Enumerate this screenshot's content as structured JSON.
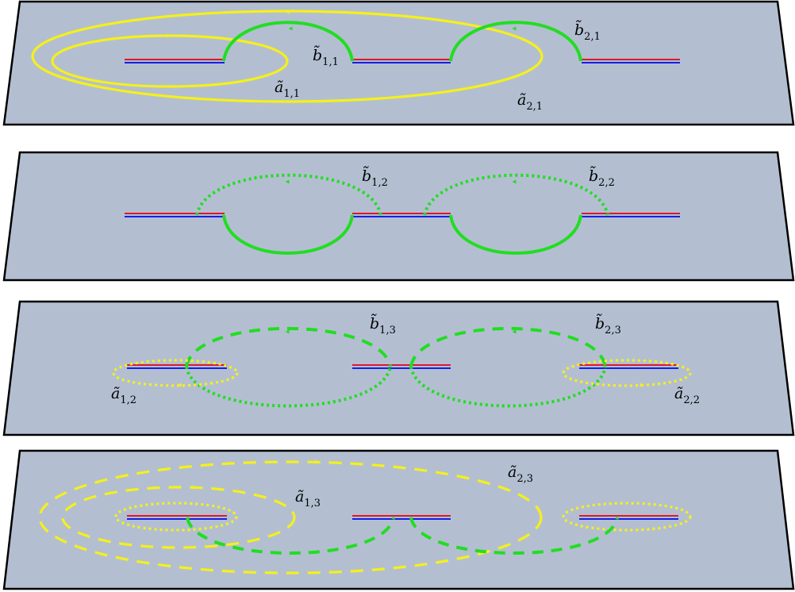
{
  "labels": {
    "b11": {
      "base": "b̃",
      "sub": "1,1"
    },
    "b21": {
      "base": "b̃",
      "sub": "2,1"
    },
    "a11": {
      "base": "ã",
      "sub": "1,1"
    },
    "a21": {
      "base": "ã",
      "sub": "2,1"
    },
    "b12": {
      "base": "b̃",
      "sub": "1,2"
    },
    "b22": {
      "base": "b̃",
      "sub": "2,2"
    },
    "b13": {
      "base": "b̃",
      "sub": "1,3"
    },
    "b23": {
      "base": "b̃",
      "sub": "2,3"
    },
    "a12": {
      "base": "ã",
      "sub": "1,2"
    },
    "a22": {
      "base": "ã",
      "sub": "2,2"
    },
    "a13": {
      "base": "ã",
      "sub": "1,3"
    },
    "a23": {
      "base": "ã",
      "sub": "2,3"
    }
  },
  "colors": {
    "sheet": "#b3bfd1",
    "cut_red": "#e0162b",
    "cut_blue": "#1420e6",
    "b_cycle": "#22dd22",
    "a_cycle": "#f5f01a"
  }
}
